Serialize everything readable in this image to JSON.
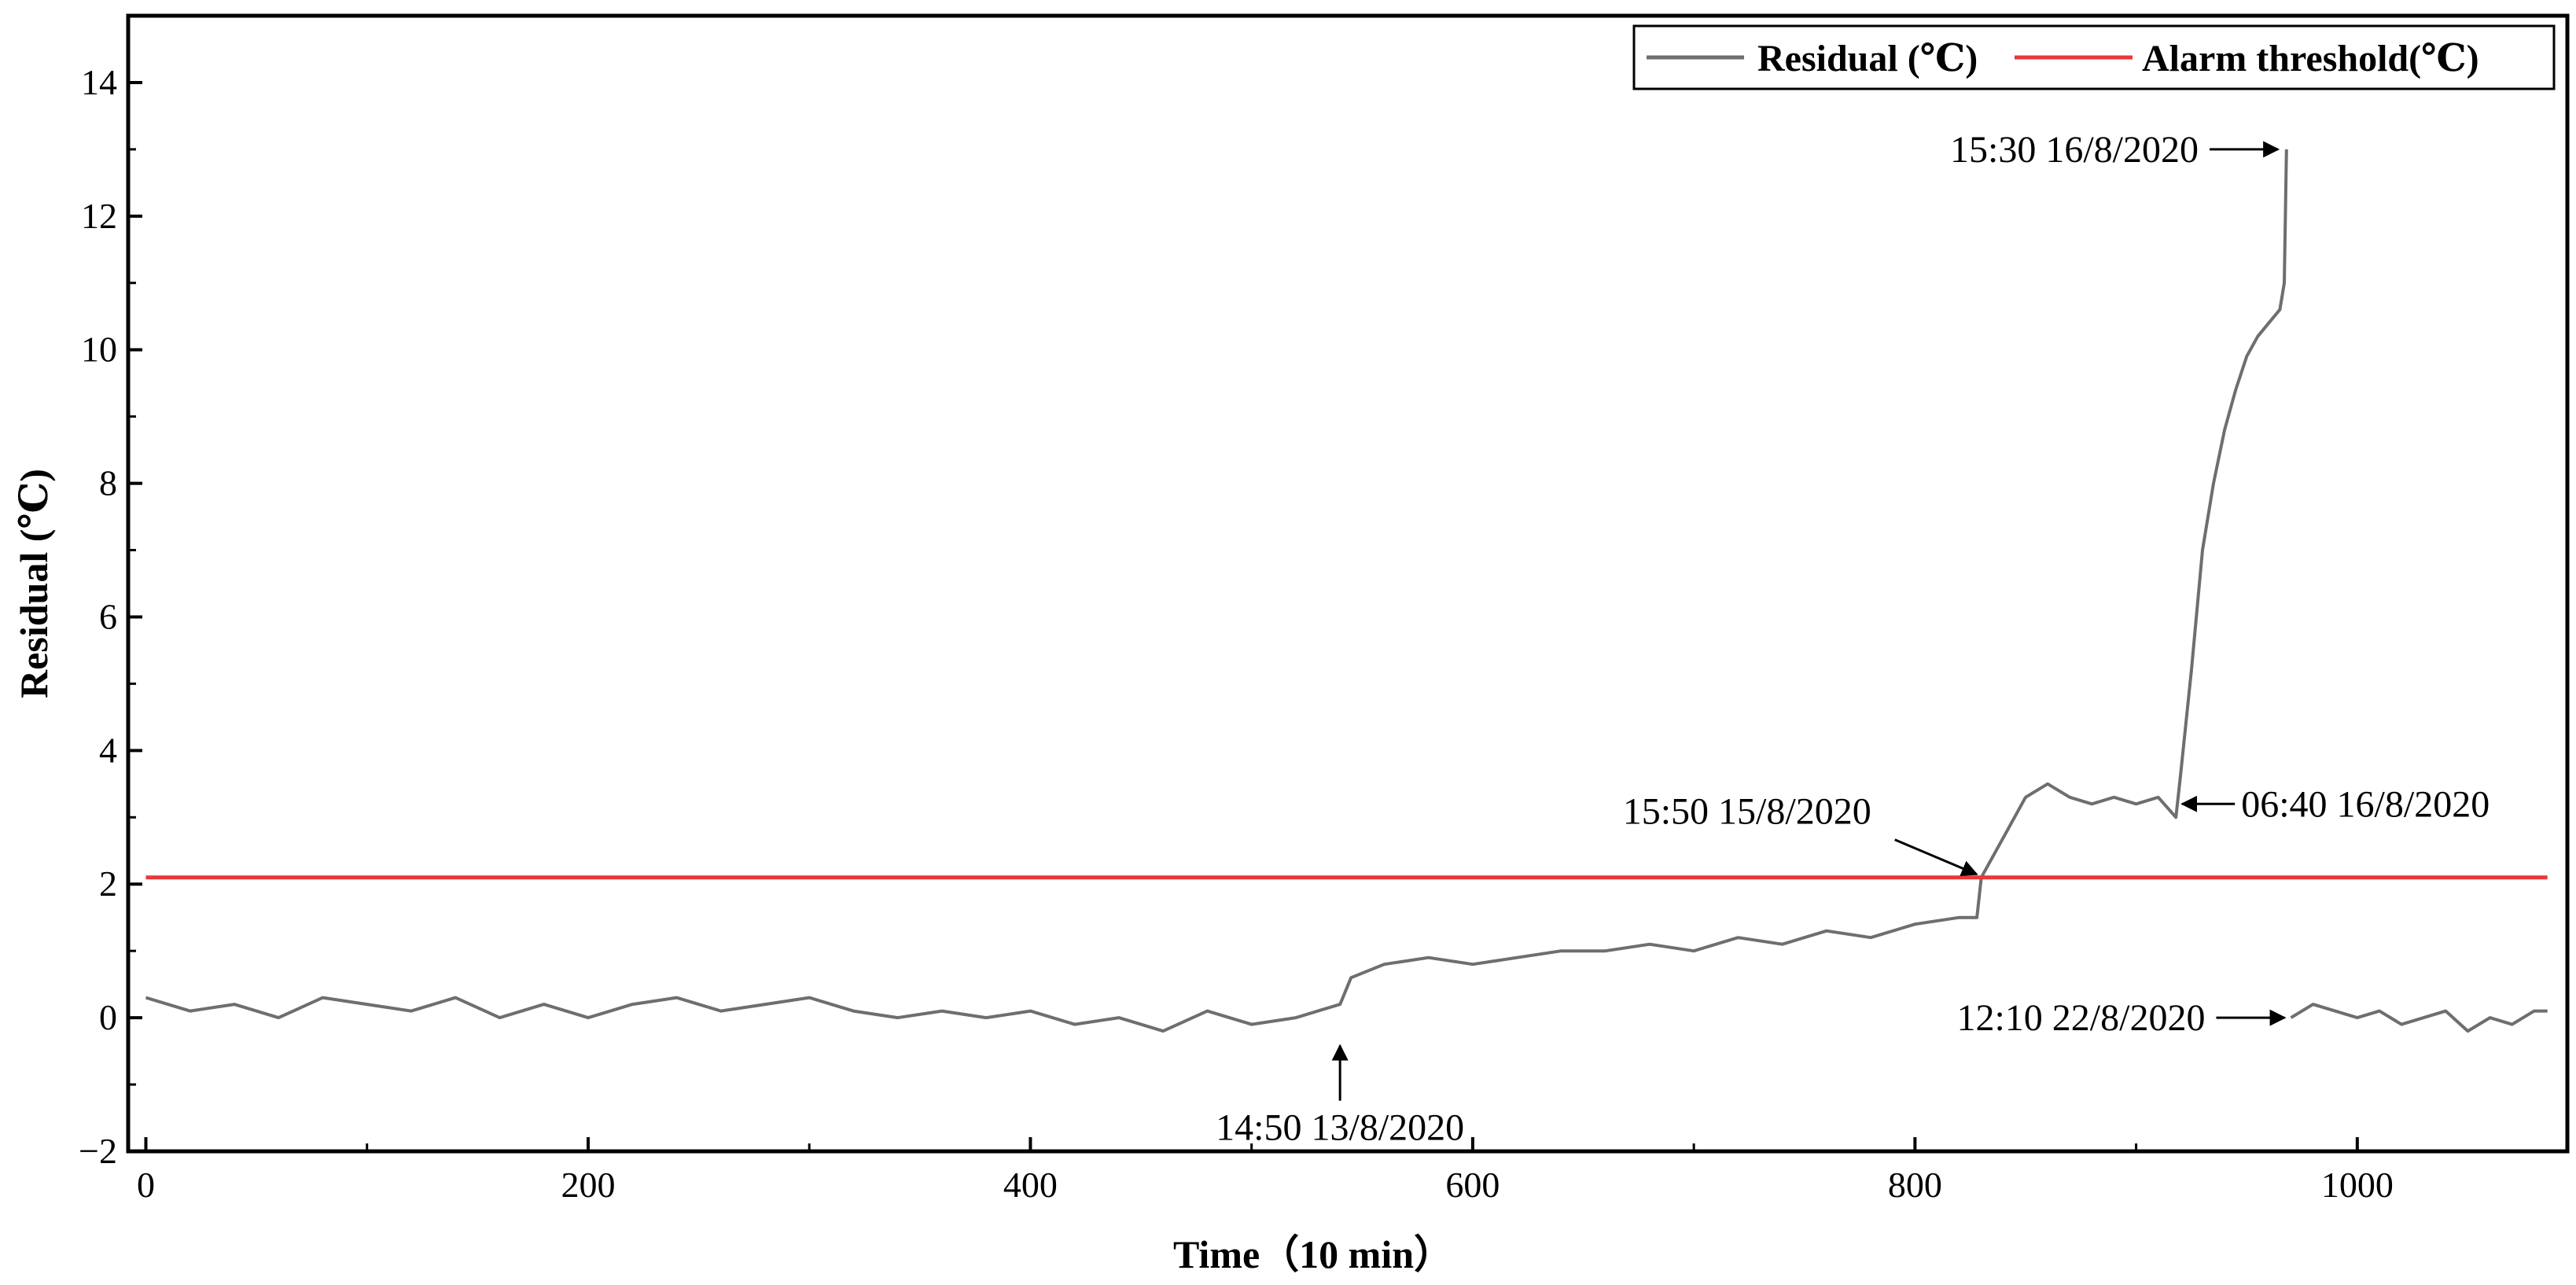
{
  "chart_data": {
    "type": "line",
    "title": "",
    "xlabel": "Time（10 min）",
    "ylabel": "Residual (℃)",
    "xlim": [
      -8,
      1095
    ],
    "ylim": [
      -2,
      15
    ],
    "x_ticks": [
      0,
      200,
      400,
      600,
      800,
      1000
    ],
    "y_ticks": [
      -2,
      0,
      2,
      4,
      6,
      8,
      10,
      12,
      14
    ],
    "x_tick_labels": [
      "0",
      "200",
      "400",
      "600",
      "800",
      "1000"
    ],
    "y_tick_labels": [
      "−2",
      "0",
      "2",
      "4",
      "6",
      "8",
      "10",
      "12",
      "14"
    ],
    "grid": false,
    "legend_position": "top-right",
    "series": [
      {
        "name": "Residual (℃)",
        "color": "#6e6e6e",
        "segments": [
          {
            "x": [
              0,
              20,
              40,
              60,
              80,
              100,
              120,
              140,
              160,
              180,
              200,
              220,
              240,
              260,
              280,
              300,
              320,
              340,
              360,
              380,
              400,
              420,
              440,
              460,
              480,
              500,
              520,
              530,
              540,
              545,
              560,
              580,
              600,
              620,
              640,
              660,
              680,
              700,
              720,
              740,
              760,
              780,
              800,
              820,
              828,
              830,
              840,
              850,
              860,
              870,
              880,
              890,
              900,
              910,
              918,
              920,
              925,
              930,
              935,
              940,
              945,
              950,
              955,
              960,
              965,
              967,
              968
            ],
            "y": [
              0.3,
              0.1,
              0.2,
              0.0,
              0.3,
              0.2,
              0.1,
              0.3,
              0.0,
              0.2,
              0.0,
              0.2,
              0.3,
              0.1,
              0.2,
              0.3,
              0.1,
              0.0,
              0.1,
              0.0,
              0.1,
              -0.1,
              0.0,
              -0.2,
              0.1,
              -0.1,
              0.0,
              0.1,
              0.2,
              0.6,
              0.8,
              0.9,
              0.8,
              0.9,
              1.0,
              1.0,
              1.1,
              1.0,
              1.2,
              1.1,
              1.3,
              1.2,
              1.4,
              1.5,
              1.5,
              2.1,
              2.7,
              3.3,
              3.5,
              3.3,
              3.2,
              3.3,
              3.2,
              3.3,
              3.0,
              3.6,
              5.2,
              7.0,
              8.0,
              8.8,
              9.4,
              9.9,
              10.2,
              10.4,
              10.6,
              11.0,
              13.0
            ]
          },
          {
            "x": [
              970,
              980,
              990,
              1000,
              1010,
              1020,
              1030,
              1040,
              1050,
              1060,
              1070,
              1080,
              1086
            ],
            "y": [
              0.0,
              0.2,
              0.1,
              0.0,
              0.1,
              -0.1,
              0.0,
              0.1,
              -0.2,
              0.0,
              -0.1,
              0.1,
              0.1
            ]
          }
        ]
      },
      {
        "name": "Alarm threshold(℃)",
        "color": "#e8383b",
        "segments": [
          {
            "x": [
              0,
              1086
            ],
            "y": [
              2.1,
              2.1
            ]
          }
        ]
      }
    ],
    "annotations": [
      {
        "text": "15:30 16/8/2020",
        "point": [
          967,
          13.0
        ],
        "arrow": "right"
      },
      {
        "text": "06:40 16/8/2020",
        "point": [
          918,
          3.2
        ],
        "arrow": "left"
      },
      {
        "text": "15:50 15/8/2020",
        "point": [
          830,
          2.1
        ],
        "arrow": "down-right"
      },
      {
        "text": "12:10 22/8/2020",
        "point": [
          970,
          0.0
        ],
        "arrow": "right"
      },
      {
        "text": "14:50 13/8/2020",
        "point": [
          540,
          -0.3
        ],
        "arrow": "up"
      }
    ]
  }
}
